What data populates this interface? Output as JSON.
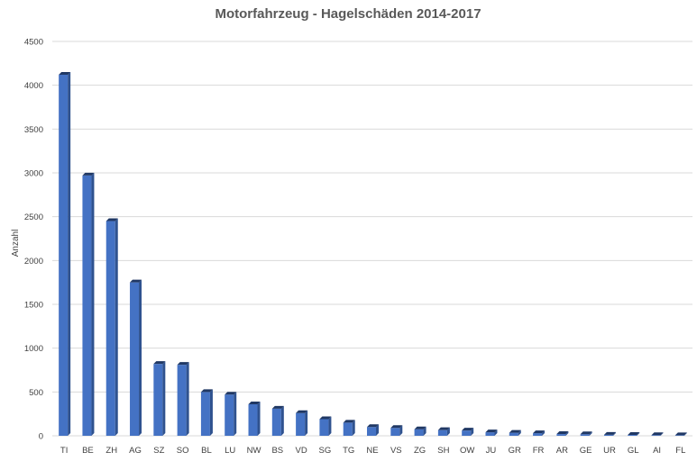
{
  "chart_data": {
    "type": "bar",
    "title": "Motorfahrzeug - Hagelschäden 2014-2017",
    "xlabel": "",
    "ylabel": "Anzahl",
    "ylim": [
      0,
      4500
    ],
    "yticks": [
      0,
      500,
      1000,
      1500,
      2000,
      2500,
      3000,
      3500,
      4000,
      4500
    ],
    "grid": true,
    "legend": "none",
    "bar_color": "#4472c4",
    "bar_side_color": "#2f528f",
    "bar_top_color": "#203864",
    "grid_color": "#d9d9d9",
    "categories": [
      "TI",
      "BE",
      "ZH",
      "AG",
      "SZ",
      "SO",
      "BL",
      "LU",
      "NW",
      "BS",
      "VD",
      "SG",
      "TG",
      "NE",
      "VS",
      "ZG",
      "SH",
      "OW",
      "JU",
      "GR",
      "FR",
      "AR",
      "GE",
      "UR",
      "GL",
      "AI",
      "FL"
    ],
    "values": [
      4120,
      2970,
      2450,
      1750,
      820,
      810,
      500,
      470,
      360,
      310,
      260,
      190,
      150,
      100,
      90,
      75,
      65,
      60,
      40,
      35,
      30,
      20,
      18,
      12,
      10,
      8,
      6
    ]
  }
}
